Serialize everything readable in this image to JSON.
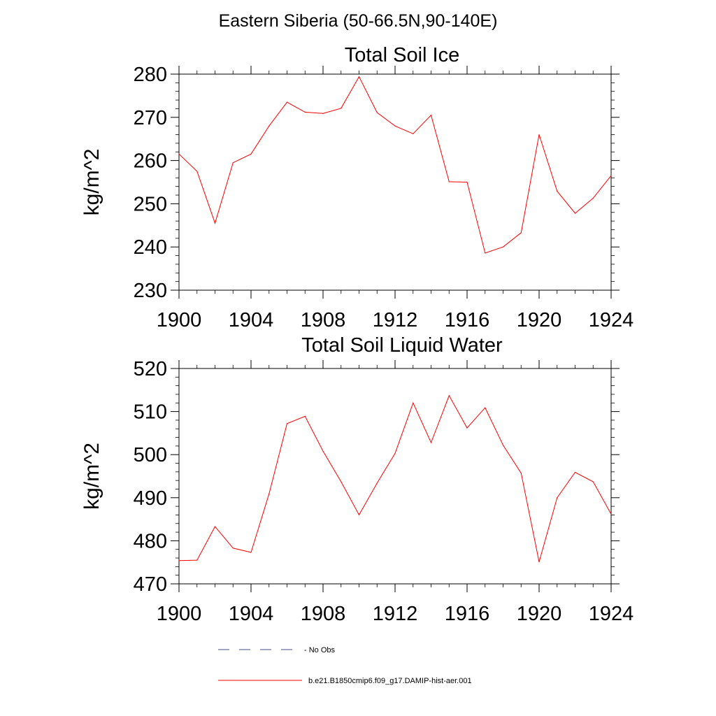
{
  "figure": {
    "main_title": "Eastern Siberia (50-66.5N,90-140E)"
  },
  "legend": {
    "entries": [
      {
        "label": "No Obs",
        "color": "#4a4a8c",
        "style": "dashed"
      },
      {
        "label": "b.e21.B1850cmip6.f09_g17.DAMIP-hist-aer.001",
        "color": "#ff0000",
        "style": "solid"
      }
    ]
  },
  "chart_data": [
    {
      "type": "line",
      "title": "Total Soil Ice",
      "xlabel": "",
      "ylabel": "kg/m^2",
      "xlim": [
        1900,
        1924
      ],
      "ylim": [
        230,
        280
      ],
      "x_ticks": [
        1900,
        1904,
        1908,
        1912,
        1916,
        1920,
        1924
      ],
      "y_ticks": [
        230,
        240,
        250,
        260,
        270,
        280
      ],
      "grid": false,
      "x": [
        1900,
        1901,
        1902,
        1903,
        1904,
        1905,
        1906,
        1907,
        1908,
        1909,
        1910,
        1911,
        1912,
        1913,
        1914,
        1915,
        1916,
        1917,
        1918,
        1919,
        1920,
        1921,
        1922,
        1923,
        1924
      ],
      "series": [
        {
          "color": "#ff0000",
          "values": [
            261.5,
            257.5,
            245.5,
            259.5,
            261.5,
            268,
            273.5,
            271.2,
            270.9,
            272.1,
            279.4,
            271.1,
            268,
            266.2,
            270.5,
            255.1,
            255,
            238.6,
            240,
            243.3,
            266,
            252.9,
            247.8,
            251.3,
            256.5
          ]
        }
      ]
    },
    {
      "type": "line",
      "title": "Total Soil Liquid Water",
      "xlabel": "",
      "ylabel": "kg/m^2",
      "xlim": [
        1900,
        1924
      ],
      "ylim": [
        470,
        520
      ],
      "x_ticks": [
        1900,
        1904,
        1908,
        1912,
        1916,
        1920,
        1924
      ],
      "y_ticks": [
        470,
        480,
        490,
        500,
        510,
        520
      ],
      "grid": false,
      "x": [
        1900,
        1901,
        1902,
        1903,
        1904,
        1905,
        1906,
        1907,
        1908,
        1909,
        1910,
        1911,
        1912,
        1913,
        1914,
        1915,
        1916,
        1917,
        1918,
        1919,
        1920,
        1921,
        1922,
        1923,
        1924
      ],
      "series": [
        {
          "color": "#ff0000",
          "values": [
            475.4,
            475.5,
            483.3,
            478.3,
            477.3,
            490.9,
            507.2,
            508.9,
            500.8,
            493.7,
            486,
            493.4,
            500.3,
            512,
            502.8,
            513.7,
            506.2,
            510.9,
            502.2,
            495.7,
            475.1,
            490,
            495.9,
            493.7,
            486.2
          ]
        }
      ]
    }
  ]
}
